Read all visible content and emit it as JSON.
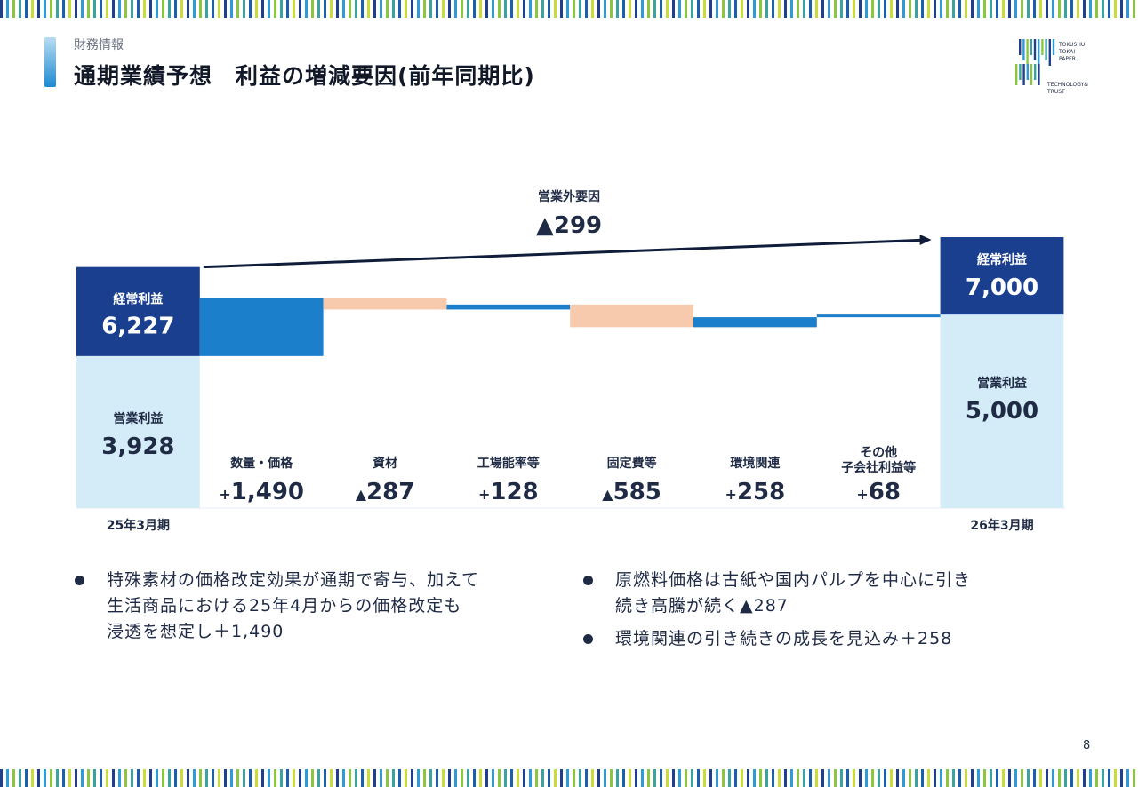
{
  "header": {
    "section": "財務情報",
    "title": "通期業績予想　利益の増減要因(前年同期比)"
  },
  "logo": {
    "lines": [
      "TOKUSHU",
      "TOKAI",
      "PAPER"
    ],
    "tagline_1": "TECHNOLOGY&",
    "tagline_2": "TRUST",
    "colors": [
      "#1f3f8f",
      "#2e9bd6",
      "#8cc63f",
      "#3aa3a0"
    ]
  },
  "chart_data": {
    "type": "bar",
    "subtype": "waterfall",
    "scale_max": 7000,
    "colors": {
      "operating": "#d4ebf8",
      "ordinary": "#1a3f8f",
      "increase": "#1b7fcc",
      "decrease": "#f7c9ad",
      "label_dark": "#1f2a44",
      "label_light": "#ffffff",
      "arrow": "#0f1d3a"
    },
    "start": {
      "period": "25年3月期",
      "operating_label": "営業利益",
      "operating_value": 3928,
      "operating_display": "3,928",
      "ordinary_label": "経常利益",
      "ordinary_value": 6227,
      "ordinary_display": "6,227"
    },
    "end": {
      "period": "26年3月期",
      "operating_label": "営業利益",
      "operating_value": 5000,
      "operating_display": "5,000",
      "ordinary_label": "経常利益",
      "ordinary_value": 7000,
      "ordinary_display": "7,000"
    },
    "steps": [
      {
        "label": [
          "数量・価格"
        ],
        "sign": "+",
        "value": 1490,
        "display": "1,490"
      },
      {
        "label": [
          "資材"
        ],
        "sign": "▲",
        "value": -287,
        "display": "287"
      },
      {
        "label": [
          "工場能率等"
        ],
        "sign": "+",
        "value": 128,
        "display": "128"
      },
      {
        "label": [
          "固定費等"
        ],
        "sign": "▲",
        "value": -585,
        "display": "585"
      },
      {
        "label": [
          "環境関連"
        ],
        "sign": "+",
        "value": 258,
        "display": "258"
      },
      {
        "label": [
          "その他",
          "子会社利益等"
        ],
        "sign": "+",
        "value": 68,
        "display": "68"
      }
    ],
    "non_operating": {
      "label": "営業外要因",
      "value": -299,
      "display": "▲299"
    }
  },
  "bullets": {
    "left": [
      "特殊素材の価格改定効果が通期で寄与、加えて",
      "生活商品における25年4月からの価格改定も",
      "浸透を想定し＋1,490"
    ],
    "right_1": [
      "原燃料価格は古紙や国内パルプを中心に引き",
      "続き高騰が続く▲287"
    ],
    "right_2": [
      "環境関連の引き続きの成長を見込み＋258"
    ]
  },
  "page_number": "8"
}
